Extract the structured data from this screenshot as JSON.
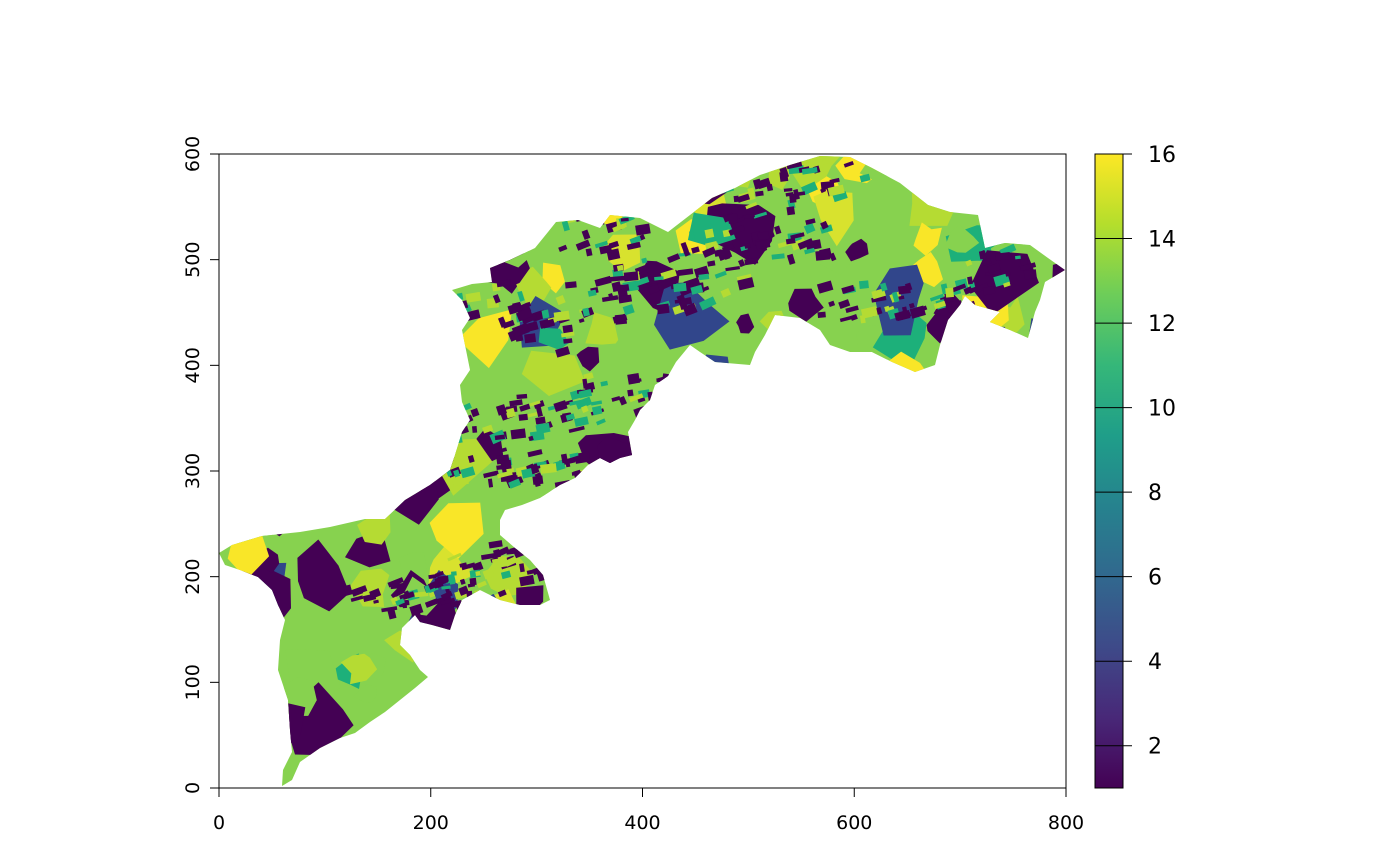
{
  "chart_data": {
    "type": "raster",
    "x_axis": {
      "range": [
        0,
        800
      ],
      "ticks": [
        0,
        200,
        400,
        600,
        800
      ]
    },
    "y_axis": {
      "range": [
        0,
        600
      ],
      "ticks": [
        0,
        100,
        200,
        300,
        400,
        500,
        600
      ]
    },
    "legend": {
      "type": "colorbar",
      "range": [
        1,
        16
      ],
      "ticks": [
        2,
        4,
        6,
        8,
        10,
        12,
        14,
        16
      ],
      "palette": [
        "#440154",
        "#482878",
        "#3E4A89",
        "#31688E",
        "#26828E",
        "#1F9E89",
        "#35B779",
        "#6DCD59",
        "#B4DE2C",
        "#FDE725"
      ]
    },
    "class_colors": {
      "c1": "#440154",
      "c4": "#31468B",
      "c12": "#1DB07A",
      "c13": "#87D24F",
      "c14": "#B5DB33",
      "c15": "#D8E22E",
      "c16": "#F9E628"
    }
  }
}
